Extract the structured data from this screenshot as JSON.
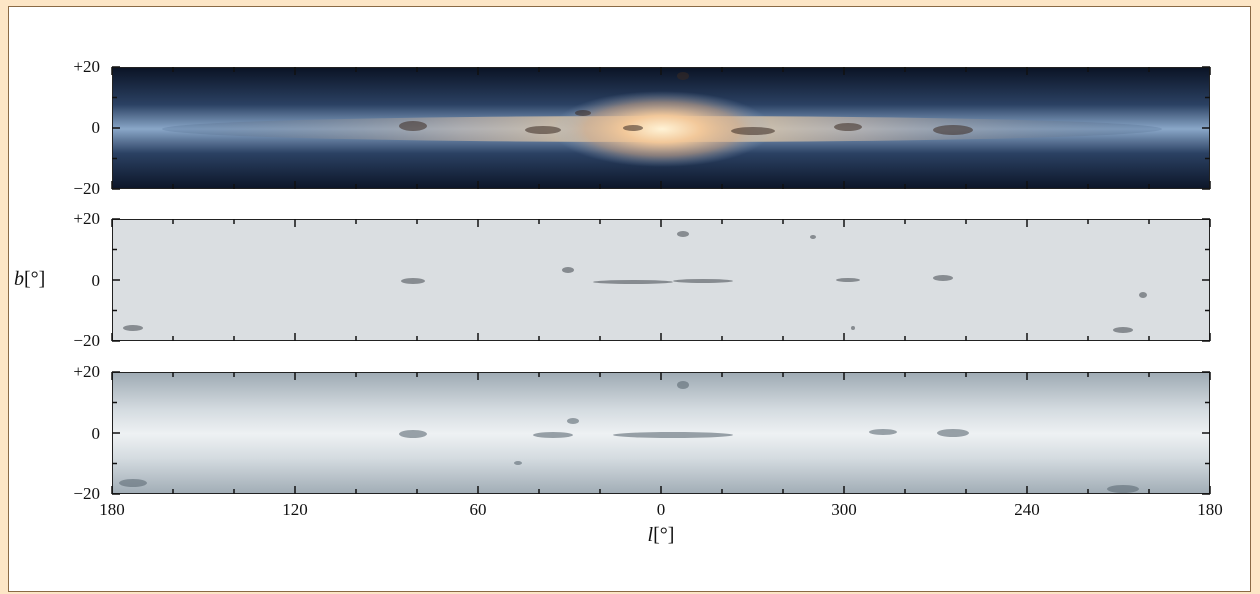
{
  "figure": {
    "y_axis": {
      "symbol": "b",
      "unit": "[°]",
      "ticks_top": "+20",
      "ticks_mid": "0",
      "ticks_bottom": "−20"
    },
    "x_axis": {
      "symbol": "l",
      "unit": "[°]",
      "ticks": [
        "180",
        "120",
        "60",
        "0",
        "300",
        "240",
        "180"
      ]
    },
    "panels": [
      {
        "name": "color-sky-map"
      },
      {
        "name": "grey-sky-map"
      },
      {
        "name": "extinction-sky-map"
      }
    ],
    "colors": {
      "frame_background": "#fde6c6",
      "panel_border": "#222222",
      "color_map_dark": "#0b1426",
      "color_map_band": "#6a8cb4",
      "color_map_core": "#f6d7a6",
      "grey_map_bg": "#d9dde0",
      "extinction_map_bg": "#c9d2d8"
    }
  }
}
